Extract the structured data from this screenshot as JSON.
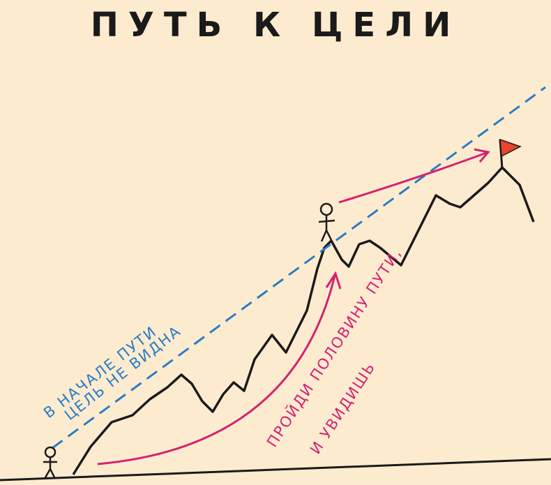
{
  "title": "ПУТЬ К ЦЕЛИ",
  "start_note": {
    "line1": "В НАЧАЛЕ ПУТИ",
    "line2": "ЦЕЛЬ НЕ ВИДНА"
  },
  "middle_note": {
    "line1": "ПРОЙДИ ПОЛОВИНУ ПУТИ,",
    "line2": "И УВИДИШЬ"
  },
  "colors": {
    "background": "#fdebd0",
    "dashed_line": "#2b7bc4",
    "arrows": "#d4226f",
    "flag": "#e8452c",
    "ink": "#1a1a1a"
  }
}
